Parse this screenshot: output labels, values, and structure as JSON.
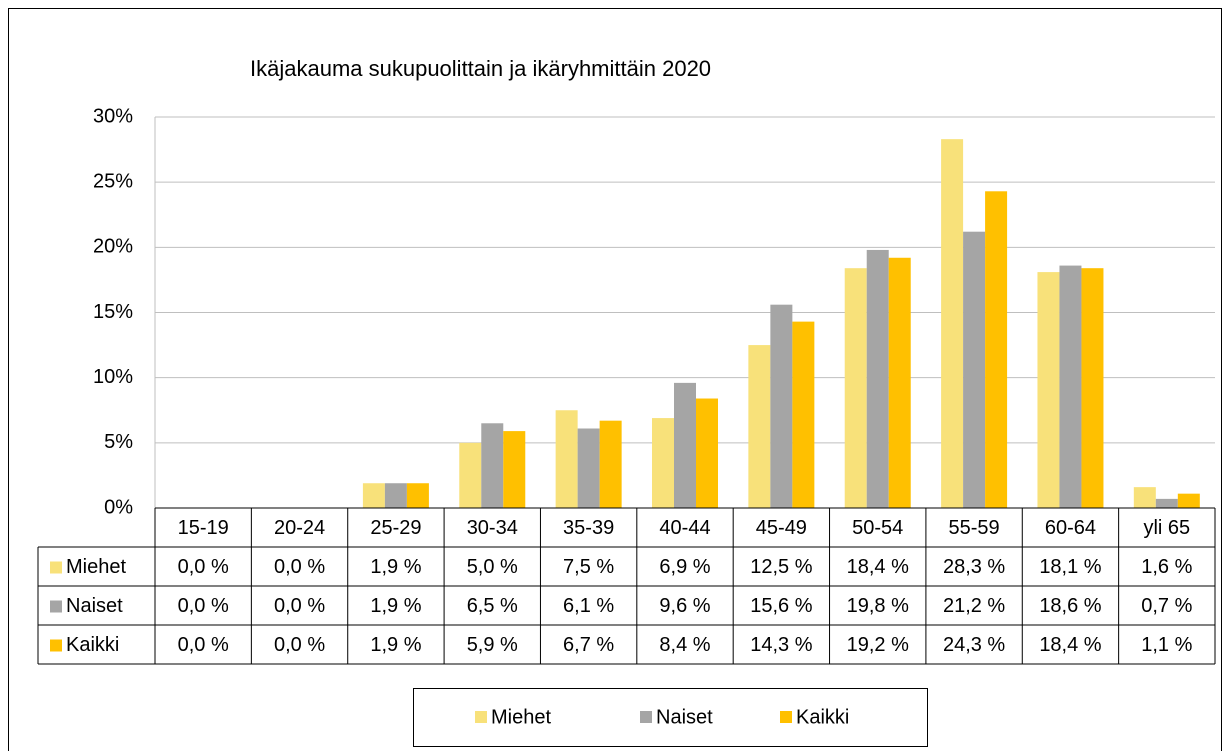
{
  "chart_data": {
    "type": "bar",
    "title": "Ikäjakauma sukupuolittain ja ikäryhmittäin 2020",
    "categories": [
      "15-19",
      "20-24",
      "25-29",
      "30-34",
      "35-39",
      "40-44",
      "45-49",
      "50-54",
      "55-59",
      "60-64",
      "yli 65"
    ],
    "series": [
      {
        "name": "Miehet",
        "color": "#f8e17a",
        "values": [
          0.0,
          0.0,
          1.9,
          5.0,
          7.5,
          6.9,
          12.5,
          18.4,
          28.3,
          18.1,
          1.6
        ],
        "value_labels": [
          "0,0 %",
          "0,0 %",
          "1,9 %",
          "5,0 %",
          "7,5 %",
          "6,9 %",
          "12,5 %",
          "18,4 %",
          "28,3 %",
          "18,1 %",
          "1,6 %"
        ]
      },
      {
        "name": "Naiset",
        "color": "#a5a5a5",
        "values": [
          0.0,
          0.0,
          1.9,
          6.5,
          6.1,
          9.6,
          15.6,
          19.8,
          21.2,
          18.6,
          0.7
        ],
        "value_labels": [
          "0,0 %",
          "0,0 %",
          "1,9 %",
          "6,5 %",
          "6,1 %",
          "9,6 %",
          "15,6 %",
          "19,8 %",
          "21,2 %",
          "18,6 %",
          "0,7 %"
        ]
      },
      {
        "name": "Kaikki",
        "color": "#ffc000",
        "values": [
          0.0,
          0.0,
          1.9,
          5.9,
          6.7,
          8.4,
          14.3,
          19.2,
          24.3,
          18.4,
          1.1
        ],
        "value_labels": [
          "0,0 %",
          "0,0 %",
          "1,9 %",
          "5,9 %",
          "6,7 %",
          "8,4 %",
          "14,3 %",
          "19,2 %",
          "24,3 %",
          "18,4 %",
          "1,1 %"
        ]
      }
    ],
    "ylim": [
      0,
      30
    ],
    "yticks": [
      {
        "value": 0,
        "label": "0%"
      },
      {
        "value": 5,
        "label": "5%"
      },
      {
        "value": 10,
        "label": "10%"
      },
      {
        "value": 15,
        "label": "15%"
      },
      {
        "value": 20,
        "label": "20%"
      },
      {
        "value": 25,
        "label": "25%"
      },
      {
        "value": 30,
        "label": "30%"
      }
    ],
    "grid": true,
    "legend": "bottom"
  }
}
